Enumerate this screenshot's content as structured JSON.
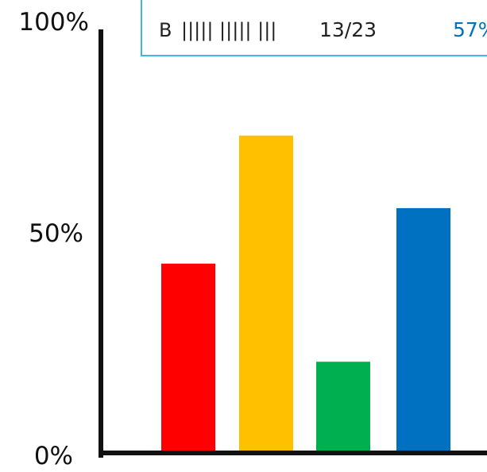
{
  "chart_data": {
    "type": "bar",
    "categories": [
      "",
      "",
      "",
      "B"
    ],
    "values": [
      44,
      74,
      21,
      57
    ],
    "ylim": [
      0,
      100
    ],
    "y_ticks": [
      {
        "value": 100,
        "label": "100%"
      },
      {
        "value": 50,
        "label": "50%"
      },
      {
        "value": 0,
        "label": "0%"
      }
    ],
    "colors": [
      "#ff0000",
      "#ffc000",
      "#00b050",
      "#0070c0"
    ],
    "grid": false,
    "legend": "none",
    "tooltip": {
      "label": "B",
      "tally": "||||| ||||| |||",
      "count": "13/23",
      "percent": "57%",
      "border_color": "#41b6e6",
      "percent_color": "#0070c0"
    }
  }
}
